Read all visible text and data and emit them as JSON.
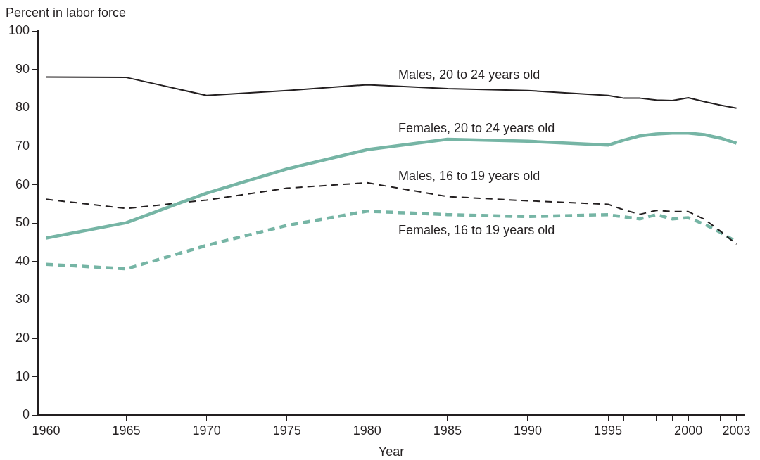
{
  "chart_data": {
    "type": "line",
    "ylabel": "Percent in labor force",
    "xlabel": "Year",
    "x": [
      1960,
      1965,
      1970,
      1975,
      1980,
      1985,
      1990,
      1995,
      1996,
      1997,
      1998,
      1999,
      2000,
      2001,
      2002,
      2003
    ],
    "xlim": [
      1959.5,
      2003.5
    ],
    "xticks": [
      1960,
      1965,
      1970,
      1975,
      1980,
      1985,
      1990,
      1995,
      {
        "value": 1996,
        "label": null
      },
      {
        "value": 1997,
        "label": null
      },
      {
        "value": 1998,
        "label": null
      },
      {
        "value": 1999,
        "label": null
      },
      2000,
      {
        "value": 2001,
        "label": null
      },
      {
        "value": 2002,
        "label": null
      },
      2003
    ],
    "ylim": [
      0,
      100
    ],
    "yticks": [
      0,
      10,
      20,
      30,
      40,
      50,
      60,
      70,
      80,
      90,
      100
    ],
    "grid": false,
    "legend": false,
    "marker": "none",
    "series": [
      {
        "name": "Males, 20 to 24 years old",
        "color": "#231f20",
        "line_style": "solid",
        "values": [
          88.0,
          87.9,
          83.2,
          84.5,
          86.0,
          85.0,
          84.5,
          83.2,
          82.5,
          82.5,
          82.0,
          81.9,
          82.6,
          81.6,
          80.7,
          79.9
        ]
      },
      {
        "name": "Females, 20 to 24 years old",
        "color": "#76b5a5",
        "line_style": "solid",
        "values": [
          46.1,
          50.1,
          57.8,
          64.1,
          69.1,
          71.8,
          71.3,
          70.3,
          71.6,
          72.7,
          73.2,
          73.4,
          73.4,
          73.0,
          72.1,
          70.8
        ]
      },
      {
        "name": "Males, 16 to 19 years old",
        "color": "#231f20",
        "line_style": "dashed",
        "values": [
          56.2,
          53.8,
          56.0,
          59.1,
          60.5,
          56.9,
          55.8,
          54.9,
          53.4,
          52.3,
          53.3,
          53.0,
          53.0,
          51.0,
          47.9,
          44.5
        ]
      },
      {
        "name": "Females, 16 to 19 years old",
        "color": "#76b5a5",
        "line_style": "dashed",
        "values": [
          39.3,
          38.1,
          44.2,
          49.4,
          53.1,
          52.2,
          51.7,
          52.2,
          51.6,
          51.1,
          52.2,
          51.1,
          51.4,
          49.7,
          47.6,
          45.1
        ]
      }
    ]
  }
}
